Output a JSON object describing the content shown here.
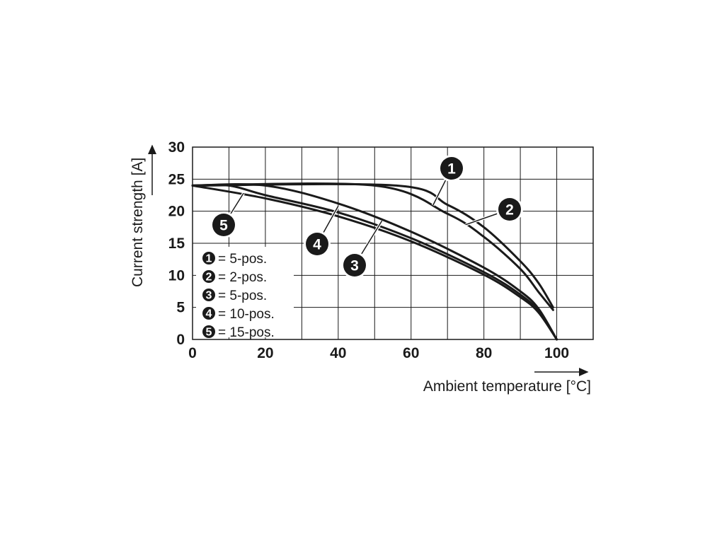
{
  "chart_data": {
    "type": "line",
    "xlabel": "Ambient temperature [°C]",
    "ylabel": "Current strength [A]",
    "xlim": [
      0,
      100
    ],
    "ylim": [
      0,
      30
    ],
    "x_ticks": [
      0,
      20,
      40,
      60,
      80,
      100
    ],
    "y_ticks": [
      0,
      5,
      10,
      15,
      20,
      25,
      30
    ],
    "grid": true,
    "legend_position": "bottom-left",
    "legend": [
      {
        "marker": "1",
        "label": "= 5-pos."
      },
      {
        "marker": "2",
        "label": "= 2-pos."
      },
      {
        "marker": "3",
        "label": "= 5-pos."
      },
      {
        "marker": "4",
        "label": "= 10-pos."
      },
      {
        "marker": "5",
        "label": "= 15-pos."
      }
    ],
    "series": [
      {
        "marker": "1",
        "points": [
          [
            0,
            24
          ],
          [
            56,
            24
          ],
          [
            70,
            21
          ],
          [
            80,
            17.5
          ],
          [
            90,
            12.2
          ],
          [
            95,
            8.8
          ],
          [
            99,
            5
          ]
        ]
      },
      {
        "marker": "2",
        "points": [
          [
            0,
            24
          ],
          [
            50,
            24
          ],
          [
            70,
            19.6
          ],
          [
            80,
            16
          ],
          [
            90,
            11
          ],
          [
            95,
            7.4
          ],
          [
            99,
            4.6
          ]
        ]
      },
      {
        "marker": "3",
        "points": [
          [
            0,
            24
          ],
          [
            20,
            24
          ],
          [
            40,
            21.2
          ],
          [
            60,
            16.8
          ],
          [
            80,
            11.2
          ],
          [
            90,
            7.5
          ],
          [
            95,
            4.8
          ],
          [
            100,
            0
          ]
        ]
      },
      {
        "marker": "4",
        "points": [
          [
            0,
            24
          ],
          [
            10,
            24
          ],
          [
            20,
            22.5
          ],
          [
            40,
            19.8
          ],
          [
            60,
            15.8
          ],
          [
            80,
            10.5
          ],
          [
            90,
            7
          ],
          [
            95,
            4.4
          ],
          [
            100,
            0
          ]
        ]
      },
      {
        "marker": "5",
        "points": [
          [
            0,
            24
          ],
          [
            20,
            22
          ],
          [
            40,
            19.2
          ],
          [
            60,
            15.3
          ],
          [
            80,
            10.1
          ],
          [
            90,
            6.6
          ],
          [
            95,
            4.2
          ],
          [
            100,
            0
          ]
        ]
      }
    ]
  }
}
